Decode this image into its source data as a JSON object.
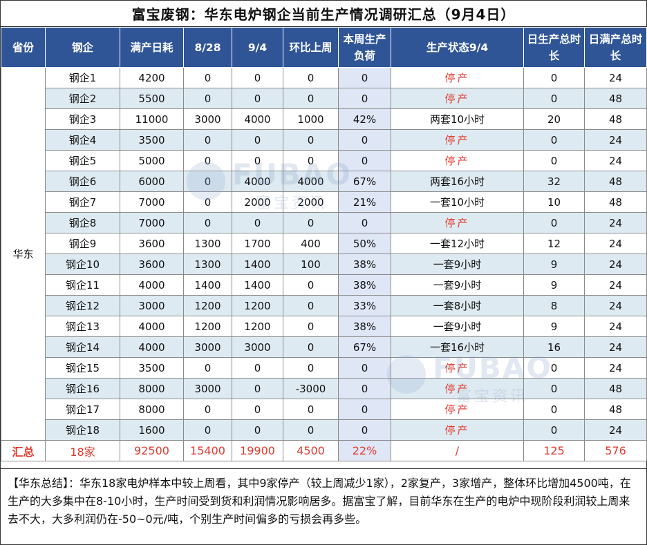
{
  "title": "富宝废钢：华东电炉钢企当前生产情况调研汇总（9月4日）",
  "headers": [
    "省份",
    "钢企",
    "满产日耗",
    "8/28",
    "9/4",
    "环比上周",
    "本周生产负荷",
    "生产状态9/4",
    "日生产总时长",
    "日满产总时长"
  ],
  "province": "华东",
  "rows": [
    {
      "name": "钢企1",
      "full": "4200",
      "prev": "0",
      "cur": "0",
      "chg": "0",
      "load": "0",
      "status": "停产",
      "stopped": true,
      "hours": "0",
      "full_hours": "24"
    },
    {
      "name": "钢企2",
      "full": "5500",
      "prev": "0",
      "cur": "0",
      "chg": "0",
      "load": "0",
      "status": "停产",
      "stopped": true,
      "hours": "0",
      "full_hours": "48"
    },
    {
      "name": "钢企3",
      "full": "11000",
      "prev": "3000",
      "cur": "4000",
      "chg": "1000",
      "load": "42%",
      "status": "两套10小时",
      "stopped": false,
      "hours": "20",
      "full_hours": "48"
    },
    {
      "name": "钢企4",
      "full": "3500",
      "prev": "0",
      "cur": "0",
      "chg": "0",
      "load": "0",
      "status": "停产",
      "stopped": true,
      "hours": "0",
      "full_hours": "24"
    },
    {
      "name": "钢企5",
      "full": "5000",
      "prev": "0",
      "cur": "0",
      "chg": "0",
      "load": "0",
      "status": "停产",
      "stopped": true,
      "hours": "0",
      "full_hours": "24"
    },
    {
      "name": "钢企6",
      "full": "6000",
      "prev": "0",
      "cur": "4000",
      "chg": "4000",
      "load": "67%",
      "status": "两套16小时",
      "stopped": false,
      "hours": "32",
      "full_hours": "48"
    },
    {
      "name": "钢企7",
      "full": "7000",
      "prev": "0",
      "cur": "2000",
      "chg": "2000",
      "load": "21%",
      "status": "一套10小时",
      "stopped": false,
      "hours": "10",
      "full_hours": "48"
    },
    {
      "name": "钢企8",
      "full": "7000",
      "prev": "0",
      "cur": "0",
      "chg": "0",
      "load": "0",
      "status": "停产",
      "stopped": true,
      "hours": "0",
      "full_hours": "24"
    },
    {
      "name": "钢企9",
      "full": "3600",
      "prev": "1300",
      "cur": "1700",
      "chg": "400",
      "load": "50%",
      "status": "一套12小时",
      "stopped": false,
      "hours": "12",
      "full_hours": "24"
    },
    {
      "name": "钢企10",
      "full": "3600",
      "prev": "1300",
      "cur": "1400",
      "chg": "100",
      "load": "38%",
      "status": "一套9小时",
      "stopped": false,
      "hours": "9",
      "full_hours": "24"
    },
    {
      "name": "钢企11",
      "full": "4000",
      "prev": "1400",
      "cur": "1400",
      "chg": "0",
      "load": "38%",
      "status": "一套9小时",
      "stopped": false,
      "hours": "9",
      "full_hours": "24"
    },
    {
      "name": "钢企12",
      "full": "3000",
      "prev": "1200",
      "cur": "1200",
      "chg": "0",
      "load": "33%",
      "status": "一套8小时",
      "stopped": false,
      "hours": "8",
      "full_hours": "24"
    },
    {
      "name": "钢企13",
      "full": "4000",
      "prev": "1200",
      "cur": "1200",
      "chg": "0",
      "load": "38%",
      "status": "一套9小时",
      "stopped": false,
      "hours": "9",
      "full_hours": "24"
    },
    {
      "name": "钢企14",
      "full": "4000",
      "prev": "3000",
      "cur": "3000",
      "chg": "0",
      "load": "67%",
      "status": "一套16小时",
      "stopped": false,
      "hours": "16",
      "full_hours": "24"
    },
    {
      "name": "钢企15",
      "full": "3500",
      "prev": "0",
      "cur": "0",
      "chg": "0",
      "load": "0",
      "status": "停产",
      "stopped": true,
      "hours": "0",
      "full_hours": "24"
    },
    {
      "name": "钢企16",
      "full": "8000",
      "prev": "3000",
      "cur": "0",
      "chg": "-3000",
      "load": "0",
      "status": "停产",
      "stopped": true,
      "hours": "0",
      "full_hours": "48"
    },
    {
      "name": "钢企17",
      "full": "8000",
      "prev": "0",
      "cur": "0",
      "chg": "0",
      "load": "0",
      "status": "停产",
      "stopped": true,
      "hours": "0",
      "full_hours": "48"
    },
    {
      "name": "钢企18",
      "full": "1600",
      "prev": "0",
      "cur": "0",
      "chg": "0",
      "load": "0",
      "status": "停产",
      "stopped": true,
      "hours": "0",
      "full_hours": "24"
    }
  ],
  "total": {
    "label": "汇总",
    "name": "18家",
    "full": "92500",
    "prev": "15400",
    "cur": "19900",
    "chg": "4500",
    "load": "22%",
    "status": "/",
    "hours": "125",
    "full_hours": "576"
  },
  "summary": "【华东总结】：华东18家电炉样本中较上周看，其中9家停产（较上周减少1家），2家复产，3家增产，整体环比增加4500吨，在生产的大多集中在8-10小时，生产时间受到货和利润情况影响居多。据富宝了解，目前华东在生产的电炉中现阶段利润较上周来去不大，大多利润仍在-50~0元/吨，个别生产时间偏多的亏损会再多些。",
  "watermark": {
    "brand": "FUBAO",
    "sub": "富宝资讯"
  },
  "colors": {
    "header_bg": "#2f5597",
    "stripe": "#deeaf1",
    "load_bg": "#dfe6f6",
    "stopped": "#e03a2f"
  }
}
